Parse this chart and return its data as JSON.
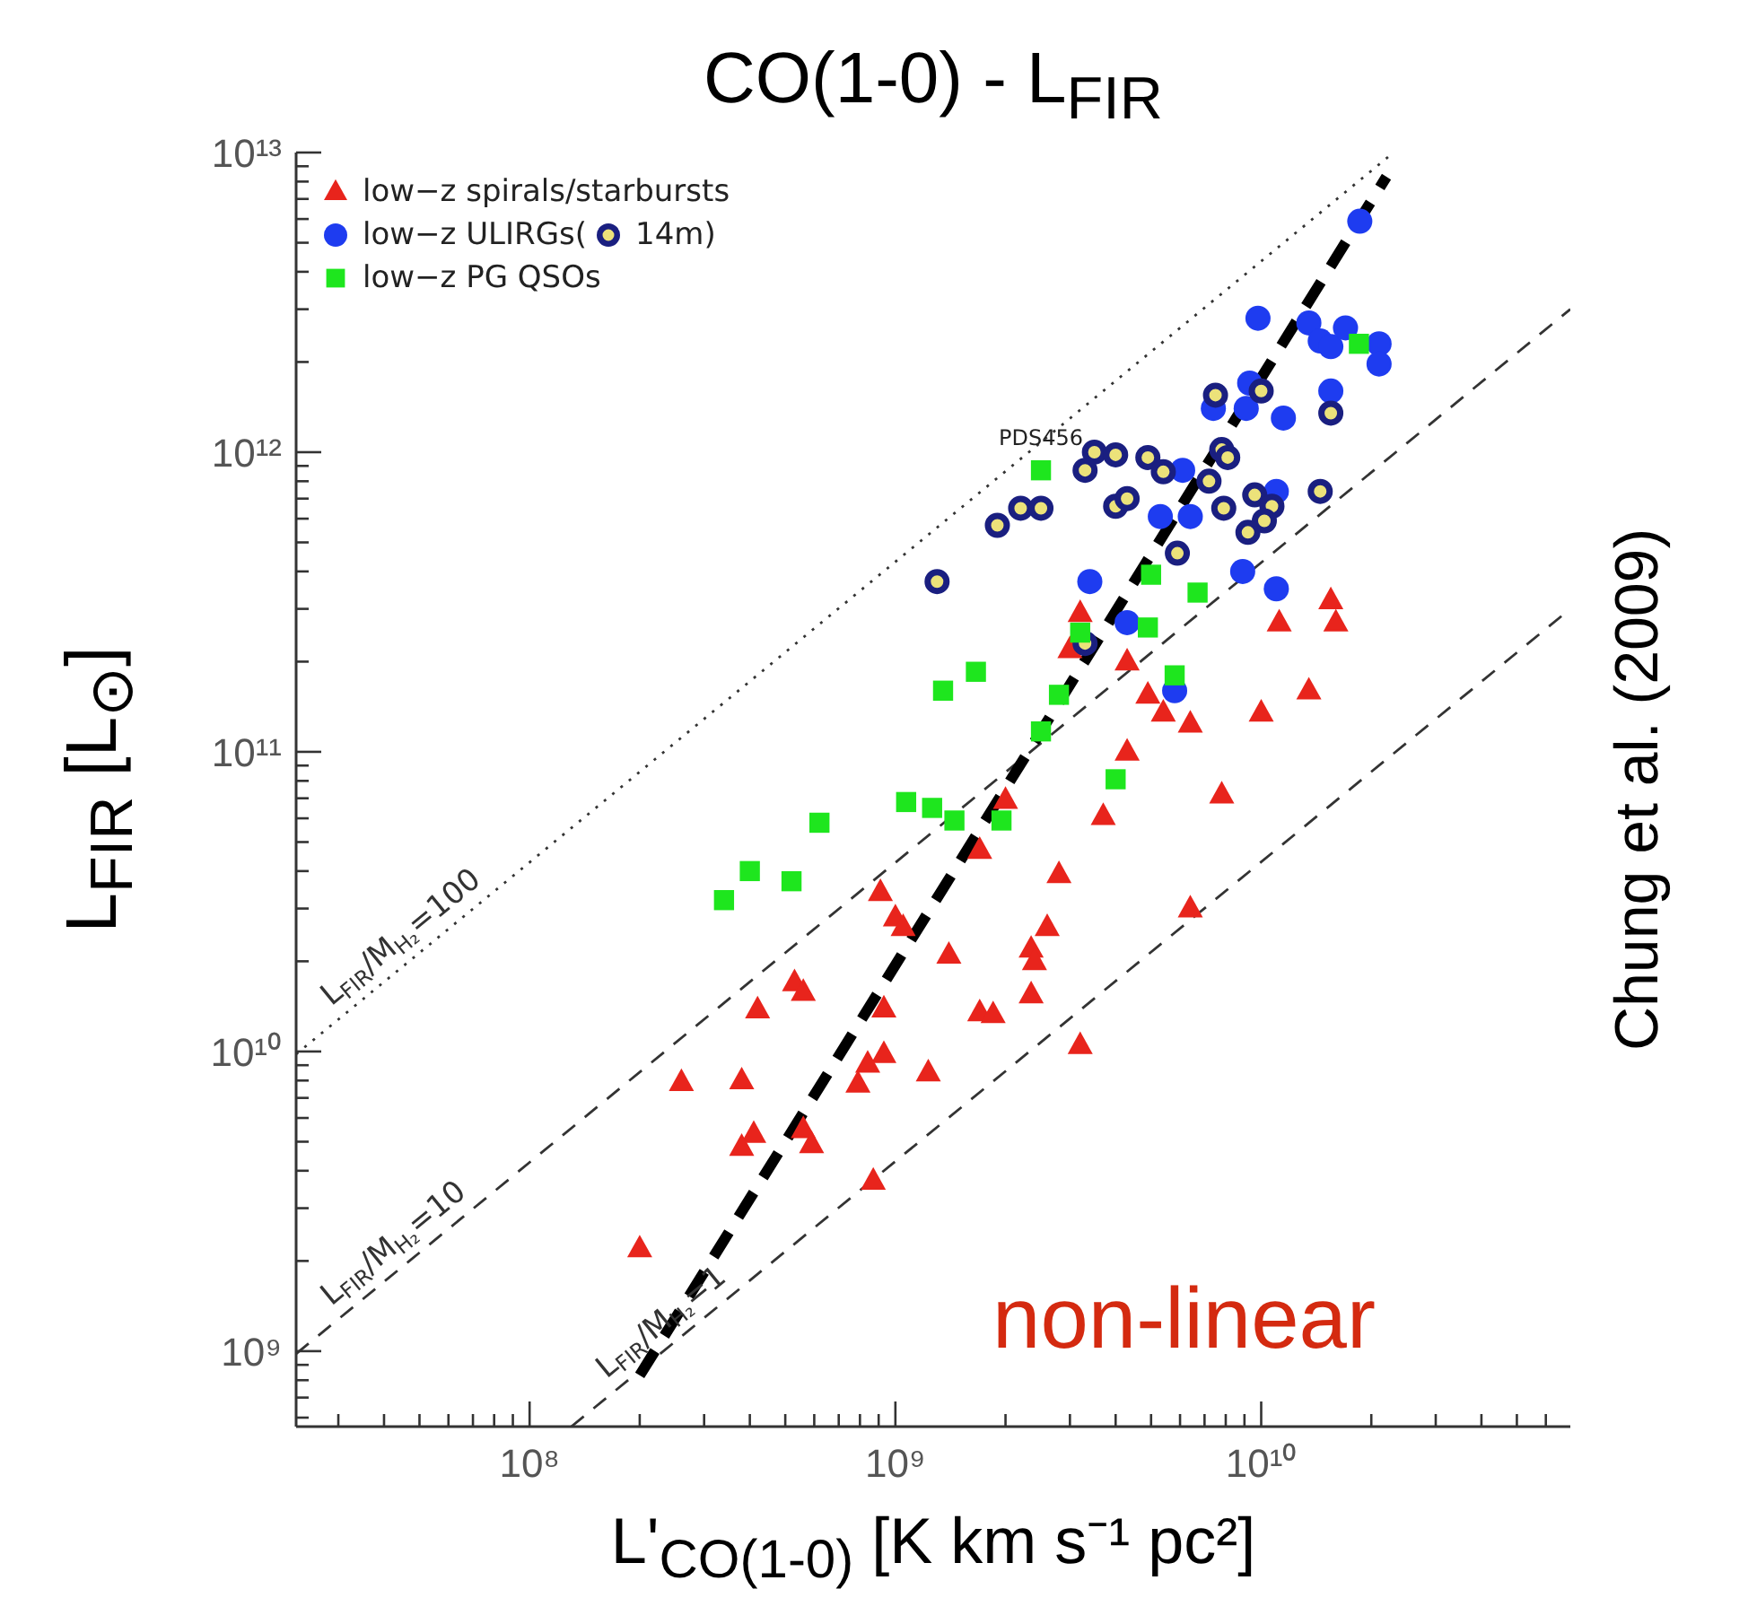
{
  "chart_data": {
    "type": "scatter",
    "title": "CO(1-0) - L$_{FIR}$",
    "xlabel": "L'$_{CO(1-0)}$ [K km s⁻¹ pc²]",
    "ylabel": "L$_{FIR}$ [L$_{⊙}$]",
    "log": "xy",
    "legend": "top left",
    "xlim": [
      23000000.0,
      70000000000.0
    ],
    "ylim": [
      560000000.0,
      10000000000000.0
    ],
    "xticks": [
      {
        "value": 30000000.0,
        "label": null
      },
      {
        "value": 40000000.0,
        "label": null
      },
      {
        "value": 50000000.0,
        "label": null
      },
      {
        "value": 60000000.0,
        "label": null
      },
      {
        "value": 70000000.0,
        "label": null
      },
      {
        "value": 80000000.0,
        "label": null
      },
      {
        "value": 90000000.0,
        "label": null
      },
      {
        "value": 100000000.0,
        "label": "10⁸"
      },
      {
        "value": 200000000.0,
        "label": null
      },
      {
        "value": 300000000.0,
        "label": null
      },
      {
        "value": 400000000.0,
        "label": null
      },
      {
        "value": 500000000.0,
        "label": null
      },
      {
        "value": 600000000.0,
        "label": null
      },
      {
        "value": 700000000.0,
        "label": null
      },
      {
        "value": 800000000.0,
        "label": null
      },
      {
        "value": 900000000.0,
        "label": null
      },
      {
        "value": 1000000000.0,
        "label": "10⁹"
      },
      {
        "value": 2000000000.0,
        "label": null
      },
      {
        "value": 3000000000.0,
        "label": null
      },
      {
        "value": 4000000000.0,
        "label": null
      },
      {
        "value": 5000000000.0,
        "label": null
      },
      {
        "value": 6000000000.0,
        "label": null
      },
      {
        "value": 7000000000.0,
        "label": null
      },
      {
        "value": 8000000000.0,
        "label": null
      },
      {
        "value": 9000000000.0,
        "label": null
      },
      {
        "value": 10000000000.0,
        "label": "10¹⁰"
      },
      {
        "value": 20000000000.0,
        "label": null
      },
      {
        "value": 30000000000.0,
        "label": null
      },
      {
        "value": 40000000000.0,
        "label": null
      },
      {
        "value": 50000000000.0,
        "label": null
      },
      {
        "value": 60000000000.0,
        "label": null
      }
    ],
    "yticks": [
      {
        "value": 600000000.0,
        "label": null
      },
      {
        "value": 700000000.0,
        "label": null
      },
      {
        "value": 800000000.0,
        "label": null
      },
      {
        "value": 900000000.0,
        "label": null
      },
      {
        "value": 1000000000.0,
        "label": "10⁹"
      },
      {
        "value": 2000000000.0,
        "label": null
      },
      {
        "value": 3000000000.0,
        "label": null
      },
      {
        "value": 4000000000.0,
        "label": null
      },
      {
        "value": 5000000000.0,
        "label": null
      },
      {
        "value": 6000000000.0,
        "label": null
      },
      {
        "value": 7000000000.0,
        "label": null
      },
      {
        "value": 8000000000.0,
        "label": null
      },
      {
        "value": 9000000000.0,
        "label": null
      },
      {
        "value": 10000000000.0,
        "label": "10¹⁰"
      },
      {
        "value": 20000000000.0,
        "label": null
      },
      {
        "value": 30000000000.0,
        "label": null
      },
      {
        "value": 40000000000.0,
        "label": null
      },
      {
        "value": 50000000000.0,
        "label": null
      },
      {
        "value": 60000000000.0,
        "label": null
      },
      {
        "value": 70000000000.0,
        "label": null
      },
      {
        "value": 80000000000.0,
        "label": null
      },
      {
        "value": 90000000000.0,
        "label": null
      },
      {
        "value": 100000000000.0,
        "label": "10¹¹"
      },
      {
        "value": 200000000000.0,
        "label": null
      },
      {
        "value": 300000000000.0,
        "label": null
      },
      {
        "value": 400000000000.0,
        "label": null
      },
      {
        "value": 500000000000.0,
        "label": null
      },
      {
        "value": 600000000000.0,
        "label": null
      },
      {
        "value": 700000000000.0,
        "label": null
      },
      {
        "value": 800000000000.0,
        "label": null
      },
      {
        "value": 900000000000.0,
        "label": null
      },
      {
        "value": 1000000000000.0,
        "label": "10¹²"
      },
      {
        "value": 2000000000000.0,
        "label": null
      },
      {
        "value": 3000000000000.0,
        "label": null
      },
      {
        "value": 4000000000000.0,
        "label": null
      },
      {
        "value": 5000000000000.0,
        "label": null
      },
      {
        "value": 6000000000000.0,
        "label": null
      },
      {
        "value": 7000000000000.0,
        "label": null
      },
      {
        "value": 8000000000000.0,
        "label": null
      },
      {
        "value": 9000000000000.0,
        "label": null
      },
      {
        "value": 10000000000000.0,
        "label": "10¹³"
      }
    ],
    "series": [
      {
        "name": "low−z spirals/starbursts",
        "marker": "triangle",
        "color": "#e8241c",
        "x": [
          15500000000.0,
          16000000000.0,
          11200000000.0,
          3200000000.0,
          3000000000.0,
          4300000000.0,
          13500000000.0,
          4900000000.0,
          5400000000.0,
          6400000000.0,
          10000000000.0,
          4300000000.0,
          7800000000.0,
          3700000000.0,
          2000000000.0,
          2800000000.0,
          1700000000.0,
          2600000000.0,
          2350000000.0,
          2400000000.0,
          1400000000.0,
          2350000000.0,
          1700000000.0,
          1850000000.0,
          3200000000.0,
          6400000000.0,
          910000000.0,
          1000000000.0,
          1050000000.0,
          530000000.0,
          560000000.0,
          420000000.0,
          930000000.0,
          260000000.0,
          380000000.0,
          840000000.0,
          930000000.0,
          790000000.0,
          1230000000.0,
          410000000.0,
          380000000.0,
          560000000.0,
          590000000.0,
          870000000.0,
          200000000.0
        ],
        "values": [
          320000000000.0,
          270000000000.0,
          270000000000.0,
          290000000000.0,
          220000000000.0,
          200000000000.0,
          160000000000.0,
          155000000000.0,
          135000000000.0,
          124000000000.0,
          135000000000.0,
          100000000000.0,
          72000000000.0,
          61000000000.0,
          69000000000.0,
          39000000000.0,
          47000000000.0,
          26000000000.0,
          22000000000.0,
          20000000000.0,
          21000000000.0,
          15500000000.0,
          13500000000.0,
          13300000000.0,
          10500000000.0,
          30000000000.0,
          34000000000.0,
          28000000000.0,
          26000000000.0,
          17000000000.0,
          15800000000.0,
          13800000000.0,
          13900000000.0,
          7900000000.0,
          8000000000.0,
          9100000000.0,
          9800000000.0,
          7800000000.0,
          8500000000.0,
          5300000000.0,
          4800000000.0,
          5500000000.0,
          4900000000.0,
          3700000000.0,
          2200000000.0
        ]
      },
      {
        "name": "low−z ULIRGs(",
        "marker": "circle",
        "color": "#1e3cf0",
        "x": [
          18600000000.0,
          9800000000.0,
          13500000000.0,
          14500000000.0,
          15500000000.0,
          17000000000.0,
          21000000000.0,
          21000000000.0,
          9300000000.0,
          7400000000.0,
          9100000000.0,
          11500000000.0,
          15500000000.0,
          6100000000.0,
          5300000000.0,
          6400000000.0,
          11000000000.0,
          8900000000.0,
          11000000000.0,
          3400000000.0,
          4300000000.0,
          5800000000.0
        ],
        "values": [
          5900000000000.0,
          2800000000000.0,
          2700000000000.0,
          2350000000000.0,
          2250000000000.0,
          2600000000000.0,
          2300000000000.0,
          1970000000000.0,
          1700000000000.0,
          1400000000000.0,
          1400000000000.0,
          1300000000000.0,
          1600000000000.0,
          870000000000.0,
          610000000000.0,
          610000000000.0,
          740000000000.0,
          400000000000.0,
          350000000000.0,
          370000000000.0,
          270000000000.0,
          160000000000.0
        ]
      },
      {
        "name": "14m)",
        "color": "#1a1f80",
        "x": [
          7500000000.0,
          10000000000.0,
          15500000000.0,
          3500000000.0,
          4000000000.0,
          3300000000.0,
          4900000000.0,
          5400000000.0,
          7800000000.0,
          8100000000.0,
          7200000000.0,
          9600000000.0,
          14500000000.0,
          10700000000.0,
          7900000000.0,
          10200000000.0,
          9200000000.0,
          4000000000.0,
          4300000000.0,
          2200000000.0,
          2500000000.0,
          1900000000.0,
          5900000000.0,
          1300000000.0,
          3300000000.0
        ],
        "values": [
          1550000000000.0,
          1600000000000.0,
          1350000000000.0,
          1000000000000.0,
          980000000000.0,
          870000000000.0,
          960000000000.0,
          860000000000.0,
          1020000000000.0,
          960000000000.0,
          800000000000.0,
          720000000000.0,
          740000000000.0,
          660000000000.0,
          650000000000.0,
          590000000000.0,
          540000000000.0,
          660000000000.0,
          700000000000.0,
          650000000000.0,
          650000000000.0,
          570000000000.0,
          460000000000.0,
          370000000000.0,
          230000000000.0
        ]
      },
      {
        "name": "low−z PG QSOs",
        "marker": "square",
        "color": "#1ee61e",
        "x": [
          2500000000.0,
          18500000000.0,
          5000000000.0,
          6700000000.0,
          4900000000.0,
          3200000000.0,
          5800000000.0,
          1660000000.0,
          1350000000.0,
          2800000000.0,
          2500000000.0,
          4000000000.0,
          1450000000.0,
          1950000000.0,
          1260000000.0,
          1070000000.0,
          620000000.0,
          400000000.0,
          520000000.0,
          340000000.0
        ],
        "values": [
          870000000000.0,
          2300000000000.0,
          390000000000.0,
          340000000000.0,
          260000000000.0,
          250000000000.0,
          180000000000.0,
          185000000000.0,
          160000000000.0,
          155000000000.0,
          117000000000.0,
          81000000000.0,
          59000000000.0,
          59000000000.0,
          65000000000.0,
          68000000000.0,
          58000000000.0,
          40000000000.0,
          37000000000.0,
          32000000000.0
        ]
      },
      {
        "name": "L$_{FIR}$/M$_{H₂}$=100",
        "type": "line",
        "line_style": "dotted",
        "color": "#333333",
        "x": [
          23000000.0,
          23000000000.0
        ],
        "values": [
          9800000000.0,
          10000000000000.0
        ]
      },
      {
        "name": "L$_{FIR}$/M$_{H₂}$=10",
        "type": "line",
        "line_style": "dashed",
        "color": "#333333",
        "x": [
          23000000.0,
          70000000000.0
        ],
        "values": [
          980000000.0,
          3000000000000.0
        ]
      },
      {
        "name": "L$_{FIR}$/M$_{H₂}$=1",
        "type": "line",
        "line_style": "dashed",
        "color": "#333333",
        "x": [
          130000000.0,
          70000000000.0
        ],
        "values": [
          560000000.0,
          300000000000.0
        ]
      },
      {
        "type": "line",
        "line_style": "dashed",
        "color": "#000000",
        "x": [
          200000000.0,
          22000000000.0
        ],
        "values": [
          830000000.0,
          8300000000000.0
        ]
      }
    ],
    "annotations": [
      "Chung et al. (2009)",
      "non-linear",
      {
        "text": "PDS456",
        "x": 2500000000.0,
        "y": 870000000000.0
      }
    ]
  }
}
